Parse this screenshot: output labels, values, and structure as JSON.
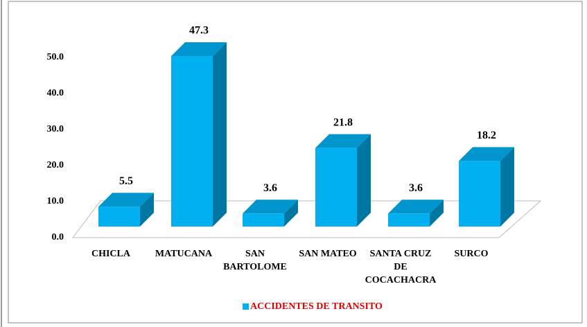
{
  "chart_data": {
    "type": "bar3d",
    "categories": [
      [
        "CHICLA"
      ],
      [
        "MATUCANA"
      ],
      [
        "SAN",
        "BARTOLOME"
      ],
      [
        "SAN MATEO"
      ],
      [
        "SANTA CRUZ",
        "DE",
        "COCACHACRA"
      ],
      [
        "SURCO"
      ]
    ],
    "series": [
      {
        "name": "ACCIDENTES DE TRANSITO",
        "color": "#00b0f0",
        "values": [
          5.5,
          47.3,
          3.6,
          21.8,
          3.6,
          18.2
        ]
      }
    ],
    "ylim": [
      0,
      50
    ],
    "yticks": [
      {
        "value": 0,
        "label": "0.0"
      },
      {
        "value": 10,
        "label": "10.0"
      },
      {
        "value": 20,
        "label": "20.0"
      },
      {
        "value": 30,
        "label": "30.0"
      },
      {
        "value": 40,
        "label": "40.0"
      },
      {
        "value": 50,
        "label": "50.0"
      }
    ],
    "legend_text_color": "#e00000",
    "legend": "bottom"
  }
}
